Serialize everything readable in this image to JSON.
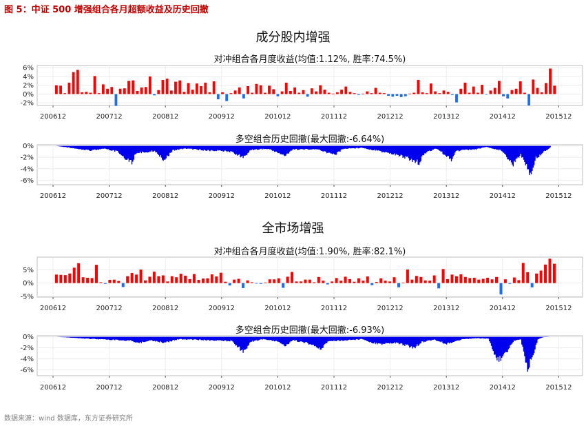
{
  "figure_title": "图 5：中证 500 增强组合各月超额收益及历史回撤",
  "source": "数据来源：wind 数据库，东方证券研究所",
  "sections": [
    {
      "title": "成分股内增强"
    },
    {
      "title": "全市场增强"
    }
  ],
  "colors": {
    "positive": "#ff0000",
    "negative": "#1e6ff0",
    "drawdown": "#0000ee",
    "figure_title": "#c00000"
  },
  "chart_data": [
    {
      "type": "bar",
      "title": "对冲组合各月度收益(均值:1.12%, 胜率:74.5%)",
      "x_tick_labels": [
        "200612",
        "200712",
        "200812",
        "200912",
        "201012",
        "201112",
        "201212",
        "201312",
        "201412",
        "201512"
      ],
      "y_tick_labels": [
        "6%",
        "4%",
        "2%",
        "0%",
        "-2%"
      ],
      "ylim": [
        -2.6,
        6.5
      ],
      "months": "200701-201511",
      "values": [
        2.0,
        1.9,
        0.2,
        2.6,
        5.0,
        5.5,
        0.4,
        0.5,
        0.3,
        4.1,
        0.2,
        2.2,
        1.2,
        1.6,
        -2.7,
        1.2,
        1.3,
        3.0,
        3.1,
        0.7,
        1.5,
        1.6,
        4.0,
        -0.3,
        0.9,
        3.2,
        3.5,
        0.8,
        2.8,
        3.1,
        0.5,
        2.5,
        1.0,
        2.4,
        1.8,
        2.6,
        0.4,
        2.9,
        -1.2,
        0.4,
        -1.6,
        0.2,
        0.8,
        1.5,
        -1.0,
        1.8,
        0.3,
        2.3,
        2.0,
        0.3,
        1.9,
        1.1,
        -0.5,
        0.6,
        2.6,
        0.7,
        1.5,
        0.3,
        0.9,
        -0.6,
        1.3,
        0.6,
        2.0,
        1.0,
        0.3,
        0.1,
        0.4,
        1.0,
        1.7,
        0.5,
        0.2,
        -0.2,
        0.1,
        0.6,
        0.2,
        1.4,
        0.3,
        0.2,
        -0.4,
        -0.6,
        -0.4,
        -0.7,
        -0.5,
        0.1,
        0.3,
        3.2,
        0.4,
        0.2,
        2.4,
        0.6,
        0.2,
        0.8,
        0.5,
        -0.2,
        -1.9,
        1.2,
        2.6,
        0.3,
        1.7,
        0.3,
        2.1,
        -0.1,
        0.8,
        1.4,
        3.0,
        -0.5,
        -1.0,
        0.9,
        1.2,
        2.9,
        0.3,
        -2.6,
        3.3,
        1.4,
        0.4,
        2.5,
        5.8,
        1.9
      ]
    },
    {
      "type": "area",
      "title": "多空组合历史回撤(最大回撤:-6.64%)",
      "x_tick_labels": [
        "200612",
        "200712",
        "200812",
        "200912",
        "201012",
        "201112",
        "201212",
        "201312",
        "201412",
        "201512"
      ],
      "y_tick_labels": [
        "0%",
        "-2%",
        "-4%",
        "-6%"
      ],
      "ylim": [
        -6.8,
        0.2
      ],
      "max_drawdown": -6.64,
      "shape": [
        [
          0,
          0
        ],
        [
          0.03,
          -0.4
        ],
        [
          0.07,
          -0.9
        ],
        [
          0.1,
          -0.6
        ],
        [
          0.125,
          -1.2
        ],
        [
          0.155,
          -3.6
        ],
        [
          0.16,
          -1.5
        ],
        [
          0.2,
          -1.0
        ],
        [
          0.22,
          -2.9
        ],
        [
          0.235,
          -1.0
        ],
        [
          0.26,
          -0.5
        ],
        [
          0.3,
          -0.9
        ],
        [
          0.35,
          -1.1
        ],
        [
          0.38,
          -2.3
        ],
        [
          0.395,
          -0.8
        ],
        [
          0.43,
          -0.6
        ],
        [
          0.465,
          -2.0
        ],
        [
          0.48,
          -0.7
        ],
        [
          0.53,
          -0.7
        ],
        [
          0.565,
          -1.9
        ],
        [
          0.58,
          -0.6
        ],
        [
          0.62,
          -0.4
        ],
        [
          0.66,
          -1.2
        ],
        [
          0.7,
          -2.1
        ],
        [
          0.735,
          -3.4
        ],
        [
          0.745,
          -1.5
        ],
        [
          0.77,
          -0.5
        ],
        [
          0.8,
          -2.8
        ],
        [
          0.81,
          -1.0
        ],
        [
          0.85,
          -0.7
        ],
        [
          0.87,
          -0.2
        ],
        [
          0.9,
          -0.9
        ],
        [
          0.925,
          -3.8
        ],
        [
          0.94,
          -1.8
        ],
        [
          0.955,
          -4.3
        ],
        [
          0.96,
          -6.64
        ],
        [
          0.97,
          -2.5
        ],
        [
          1.0,
          -0.3
        ]
      ]
    },
    {
      "type": "bar",
      "title": "对冲组合各月度收益(均值:1.90%, 胜率:82.1%)",
      "x_tick_labels": [
        "200612",
        "200712",
        "200812",
        "200912",
        "201012",
        "201112",
        "201212",
        "201312",
        "201412",
        "201512"
      ],
      "y_tick_labels": [
        "5%",
        "0%",
        "-5%"
      ],
      "ylim": [
        -5.3,
        9.8
      ],
      "months": "200701-201511",
      "values": [
        3.2,
        3.1,
        3.0,
        3.6,
        5.8,
        7.5,
        2.2,
        2.0,
        1.9,
        6.9,
        0.3,
        -0.3,
        1.2,
        1.3,
        0.8,
        -1.5,
        2.6,
        3.8,
        3.2,
        5.1,
        1.0,
        2.4,
        4.3,
        2.6,
        2.9,
        0.6,
        2.6,
        2.2,
        3.5,
        2.8,
        1.5,
        3.4,
        1.2,
        1.7,
        1.8,
        3.3,
        2.5,
        3.9,
        0.5,
        -0.9,
        1.3,
        1.6,
        -1.9,
        1.0,
        0.3,
        -0.2,
        -0.3,
        0.2,
        1.4,
        1.4,
        1.8,
        -1.8,
        2.4,
        4.2,
        0.6,
        0.6,
        1.3,
        1.3,
        0.3,
        2.3,
        0.9,
        -0.5,
        0.6,
        1.9,
        0.9,
        2.4,
        1.5,
        0.5,
        1.8,
        0.9,
        2.5,
        -0.8,
        0.4,
        1.8,
        0.9,
        0.6,
        2.2,
        -1.6,
        0.1,
        5.1,
        1.3,
        2.7,
        2.3,
        1.0,
        0.9,
        2.9,
        -2.0,
        5.3,
        1.5,
        3.2,
        2.6,
        3.3,
        2.3,
        1.9,
        2.0,
        1.3,
        1.6,
        2.0,
        1.4,
        2.3,
        -4.3,
        1.4,
        -0.3,
        2.1,
        1.1,
        7.6,
        4.1,
        -1.6,
        3.6,
        4.7,
        7.0,
        9.2,
        7.3
      ]
    },
    {
      "type": "area",
      "title": "多空组合历史回撤(最大回撤:-6.93%)",
      "x_tick_labels": [
        "200612",
        "200712",
        "200812",
        "200912",
        "201012",
        "201112",
        "201212",
        "201312",
        "201412",
        "201512"
      ],
      "y_tick_labels": [
        "0%",
        "-2%",
        "-4%",
        "-6%"
      ],
      "ylim": [
        -7.1,
        0.2
      ],
      "max_drawdown": -6.93,
      "shape": [
        [
          0,
          0
        ],
        [
          0.05,
          -0.3
        ],
        [
          0.1,
          -0.6
        ],
        [
          0.15,
          -0.8
        ],
        [
          0.17,
          -1.3
        ],
        [
          0.19,
          -0.7
        ],
        [
          0.22,
          -1.2
        ],
        [
          0.25,
          -0.5
        ],
        [
          0.3,
          -0.7
        ],
        [
          0.355,
          -0.9
        ],
        [
          0.38,
          -3.2
        ],
        [
          0.395,
          -1.0
        ],
        [
          0.42,
          -0.5
        ],
        [
          0.45,
          -1.0
        ],
        [
          0.465,
          -2.0
        ],
        [
          0.48,
          -0.7
        ],
        [
          0.515,
          -1.5
        ],
        [
          0.535,
          -2.7
        ],
        [
          0.55,
          -1.0
        ],
        [
          0.58,
          -0.8
        ],
        [
          0.62,
          -0.5
        ],
        [
          0.65,
          -1.6
        ],
        [
          0.69,
          -1.3
        ],
        [
          0.725,
          -2.3
        ],
        [
          0.74,
          -1.1
        ],
        [
          0.765,
          -0.6
        ],
        [
          0.79,
          -1.5
        ],
        [
          0.82,
          -0.6
        ],
        [
          0.85,
          -0.3
        ],
        [
          0.875,
          -0.4
        ],
        [
          0.89,
          -4.2
        ],
        [
          0.9,
          -5.0
        ],
        [
          0.91,
          -3.5
        ],
        [
          0.925,
          -1.0
        ],
        [
          0.94,
          -0.5
        ],
        [
          0.955,
          -6.93
        ],
        [
          0.965,
          -4.0
        ],
        [
          0.975,
          -0.5
        ],
        [
          0.985,
          -0.1
        ],
        [
          1.0,
          0
        ]
      ]
    }
  ]
}
